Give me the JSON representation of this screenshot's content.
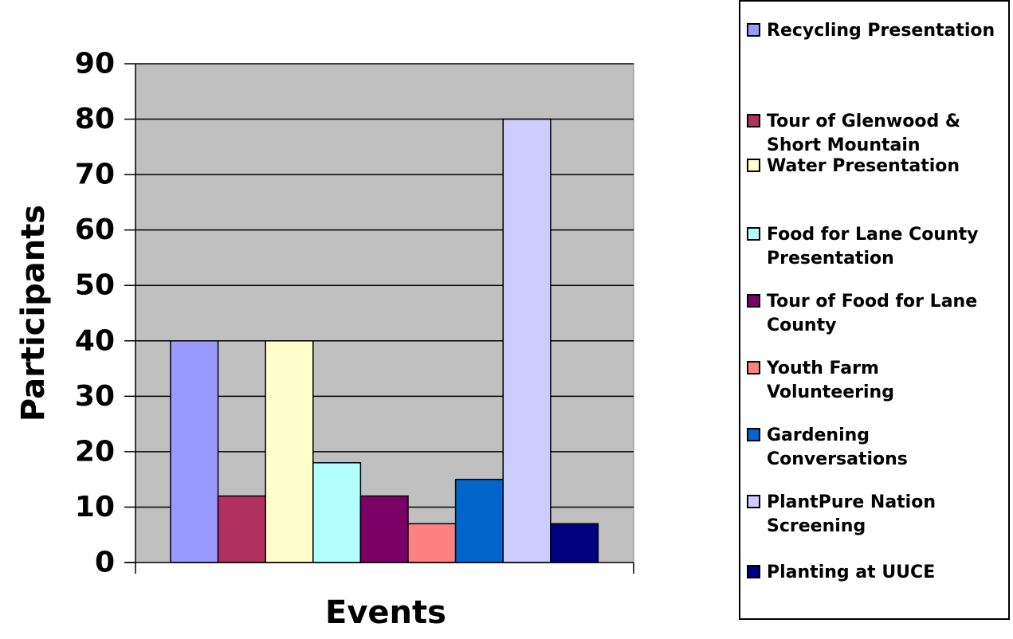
{
  "chart_data": {
    "type": "bar",
    "title": "",
    "xlabel": "Events",
    "ylabel": "Participants",
    "ylim": [
      0,
      90
    ],
    "yticks": [
      "0",
      "10",
      "20",
      "30",
      "40",
      "50",
      "60",
      "70",
      "80",
      "90"
    ],
    "grid": true,
    "plot_background": "#C0C0C0",
    "legend_position": "right",
    "series": [
      {
        "name": "Recycling Presentation",
        "values": [
          40
        ],
        "color": "#9999FF"
      },
      {
        "name": "Tour of Glenwood & Short Mountain",
        "values": [
          12
        ],
        "color": "#B03060"
      },
      {
        "name": "Water Presentation",
        "values": [
          40
        ],
        "color": "#FFFFCC"
      },
      {
        "name": "Food for Lane County Presentation",
        "values": [
          18
        ],
        "color": "#B3FFFF"
      },
      {
        "name": "Tour of Food for Lane County",
        "values": [
          12
        ],
        "color": "#7A0066"
      },
      {
        "name": "Youth Farm Volunteering",
        "values": [
          7
        ],
        "color": "#FF8080"
      },
      {
        "name": "Gardening Conversations",
        "values": [
          15
        ],
        "color": "#0066CC"
      },
      {
        "name": "PlantPure Nation Screening",
        "values": [
          80
        ],
        "color": "#CCCCFF"
      },
      {
        "name": "Planting at UUCE",
        "values": [
          7
        ],
        "color": "#000080"
      }
    ]
  }
}
